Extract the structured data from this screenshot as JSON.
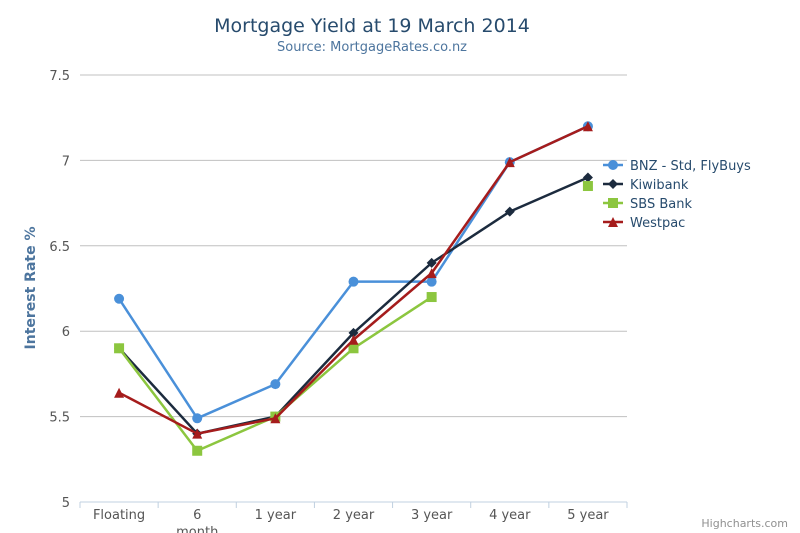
{
  "chart_data": {
    "type": "line",
    "title": "Mortgage Yield at 19 March 2014",
    "subtitle": "Source: MortgageRates.co.nz",
    "xlabel": "",
    "ylabel": "Interest Rate %",
    "categories": [
      "Floating",
      "6 month",
      "1 year",
      "2 year",
      "3 year",
      "4 year",
      "5 year"
    ],
    "yticks": [
      "5",
      "5.5",
      "6",
      "6.5",
      "7",
      "7.5"
    ],
    "ylim": [
      5,
      7.5
    ],
    "grid": true,
    "legend_position": "right",
    "series": [
      {
        "name": "BNZ - Std, FlyBuys",
        "values": [
          6.19,
          5.49,
          5.69,
          6.29,
          6.29,
          6.99,
          7.2
        ],
        "color": "#4a90d9",
        "marker": "circle"
      },
      {
        "name": "Kiwibank",
        "values": [
          5.9,
          5.4,
          5.5,
          5.99,
          6.4,
          6.7,
          6.9
        ],
        "color": "#1c2b3e",
        "marker": "diamond"
      },
      {
        "name": "SBS Bank",
        "values": [
          5.9,
          5.3,
          5.5,
          5.9,
          6.2,
          null,
          6.85
        ],
        "color": "#8cc63f",
        "marker": "square"
      },
      {
        "name": "Westpac",
        "values": [
          5.64,
          5.4,
          5.49,
          5.95,
          6.34,
          6.99,
          7.2
        ],
        "color": "#a51c1c",
        "marker": "triangle"
      }
    ]
  },
  "credits": "Highcharts.com"
}
